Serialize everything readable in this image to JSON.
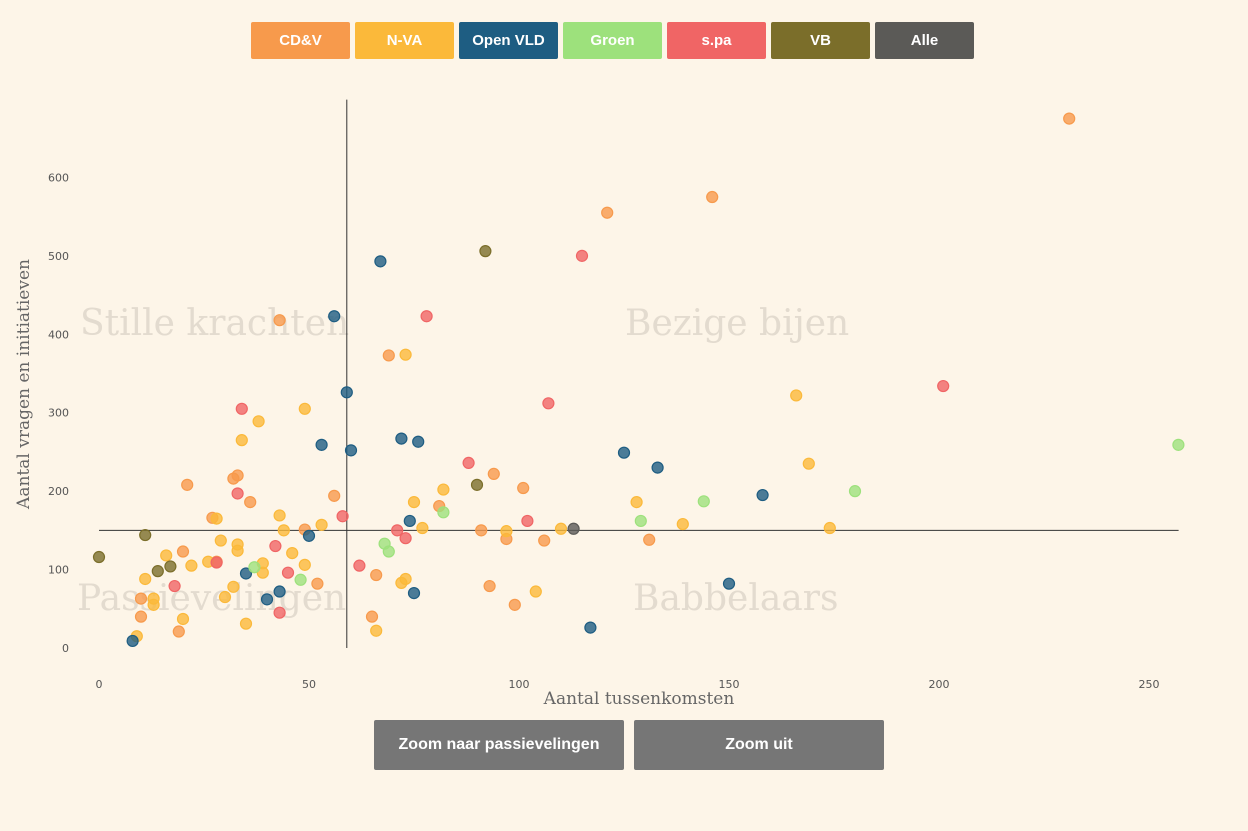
{
  "filters": [
    {
      "label": "CD&V",
      "color": "#f79a4c"
    },
    {
      "label": "N-VA",
      "color": "#fbb93a"
    },
    {
      "label": "Open VLD",
      "color": "#1e5d82"
    },
    {
      "label": "Groen",
      "color": "#9de17c"
    },
    {
      "label": "s.pa",
      "color": "#f06565"
    },
    {
      "label": "VB",
      "color": "#7b6e2a"
    },
    {
      "label": "Alle",
      "color": "#5b5a57"
    }
  ],
  "quadrants": {
    "top_left": "Stille krachten",
    "top_right": "Bezige bijen",
    "bottom_left": "Passievelingen",
    "bottom_right": "Babbelaars"
  },
  "zoom": {
    "passive_label": "Zoom naar passievelingen",
    "out_label": "Zoom uit"
  },
  "chart_data": {
    "type": "scatter",
    "xlabel": "Aantal tussenkomsten",
    "ylabel": "Aantal vragen en initiatieven",
    "xlim": [
      0,
      258
    ],
    "ylim": [
      0,
      680
    ],
    "xticks": [
      0,
      50,
      100,
      150,
      200,
      250
    ],
    "yticks": [
      0,
      100,
      200,
      300,
      400,
      500,
      600
    ],
    "reference_lines": {
      "x": 59,
      "y": 150
    },
    "series": [
      {
        "name": "CD&V",
        "color": "#f79a4c",
        "points": [
          [
            231,
            675
          ],
          [
            146,
            575
          ],
          [
            121,
            555
          ],
          [
            43,
            418
          ],
          [
            69,
            373
          ],
          [
            21,
            208
          ],
          [
            33,
            220
          ],
          [
            32,
            216
          ],
          [
            36,
            186
          ],
          [
            56,
            194
          ],
          [
            27,
            166
          ],
          [
            28,
            110
          ],
          [
            20,
            123
          ],
          [
            10,
            63
          ],
          [
            10,
            40
          ],
          [
            19,
            21
          ],
          [
            49,
            151
          ],
          [
            52,
            82
          ],
          [
            66,
            93
          ],
          [
            91,
            150
          ],
          [
            94,
            222
          ],
          [
            101,
            204
          ],
          [
            97,
            139
          ],
          [
            106,
            137
          ],
          [
            131,
            138
          ],
          [
            93,
            79
          ],
          [
            99,
            55
          ],
          [
            81,
            181
          ],
          [
            65,
            40
          ]
        ]
      },
      {
        "name": "N-VA",
        "color": "#fbb93a",
        "points": [
          [
            73,
            374
          ],
          [
            38,
            289
          ],
          [
            49,
            305
          ],
          [
            34,
            265
          ],
          [
            33,
            132
          ],
          [
            33,
            124
          ],
          [
            28,
            165
          ],
          [
            29,
            137
          ],
          [
            26,
            110
          ],
          [
            22,
            105
          ],
          [
            16,
            118
          ],
          [
            11,
            88
          ],
          [
            13,
            63
          ],
          [
            13,
            55
          ],
          [
            9,
            15
          ],
          [
            20,
            37
          ],
          [
            30,
            65
          ],
          [
            32,
            78
          ],
          [
            35,
            31
          ],
          [
            39,
            108
          ],
          [
            39,
            96
          ],
          [
            43,
            169
          ],
          [
            44,
            150
          ],
          [
            46,
            121
          ],
          [
            49,
            106
          ],
          [
            53,
            157
          ],
          [
            66,
            22
          ],
          [
            72,
            83
          ],
          [
            73,
            88
          ],
          [
            75,
            186
          ],
          [
            77,
            153
          ],
          [
            82,
            202
          ],
          [
            97,
            149
          ],
          [
            104,
            72
          ],
          [
            110,
            152
          ],
          [
            128,
            186
          ],
          [
            139,
            158
          ],
          [
            166,
            322
          ],
          [
            169,
            235
          ],
          [
            174,
            153
          ]
        ]
      },
      {
        "name": "Open VLD",
        "color": "#1e5d82",
        "points": [
          [
            67,
            493
          ],
          [
            56,
            423
          ],
          [
            59,
            326
          ],
          [
            53,
            259
          ],
          [
            60,
            252
          ],
          [
            72,
            267
          ],
          [
            76,
            263
          ],
          [
            50,
            143
          ],
          [
            74,
            162
          ],
          [
            35,
            95
          ],
          [
            40,
            62
          ],
          [
            43,
            72
          ],
          [
            75,
            70
          ],
          [
            8,
            9
          ],
          [
            117,
            26
          ],
          [
            125,
            249
          ],
          [
            133,
            230
          ],
          [
            150,
            82
          ],
          [
            158,
            195
          ]
        ]
      },
      {
        "name": "Groen",
        "color": "#9de17c",
        "points": [
          [
            257,
            259
          ],
          [
            180,
            200
          ],
          [
            144,
            187
          ],
          [
            129,
            162
          ],
          [
            82,
            173
          ],
          [
            68,
            133
          ],
          [
            69,
            123
          ],
          [
            48,
            87
          ],
          [
            37,
            103
          ]
        ]
      },
      {
        "name": "s.pa",
        "color": "#f06565",
        "points": [
          [
            115,
            500
          ],
          [
            78,
            423
          ],
          [
            201,
            334
          ],
          [
            107,
            312
          ],
          [
            34,
            305
          ],
          [
            33,
            197
          ],
          [
            88,
            236
          ],
          [
            102,
            162
          ],
          [
            71,
            150
          ],
          [
            73,
            140
          ],
          [
            58,
            168
          ],
          [
            62,
            105
          ],
          [
            42,
            130
          ],
          [
            45,
            96
          ],
          [
            43,
            45
          ],
          [
            28,
            109
          ],
          [
            18,
            79
          ]
        ]
      },
      {
        "name": "VB",
        "color": "#7b6e2a",
        "points": [
          [
            92,
            506
          ],
          [
            90,
            208
          ],
          [
            0,
            116
          ],
          [
            11,
            144
          ],
          [
            14,
            98
          ],
          [
            17,
            104
          ]
        ]
      },
      {
        "name": "Alle",
        "color": "#5b5a57",
        "points": [
          [
            113,
            152
          ]
        ]
      }
    ]
  }
}
